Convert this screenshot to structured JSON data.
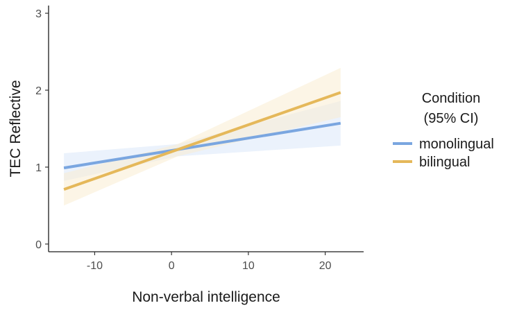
{
  "chart_data": {
    "type": "line",
    "xlabel": "Non-verbal intelligence",
    "ylabel": "TEC Reflective",
    "xlim": [
      -16,
      25
    ],
    "ylim": [
      -0.1,
      3.1
    ],
    "x_ticks": [
      -10,
      0,
      10,
      20
    ],
    "x_tick_labels": [
      "-10",
      "0",
      "10",
      "20"
    ],
    "y_ticks": [
      0,
      1,
      2,
      3
    ],
    "y_tick_labels": [
      "0",
      "1",
      "2",
      "3"
    ],
    "grid": false,
    "legend": {
      "title": [
        "Condition",
        "(95% CI)"
      ],
      "position": "right"
    },
    "series": [
      {
        "name": "monolingual",
        "color": "#7aa6e0",
        "band_color": "#dbe7fa",
        "x": [
          -14,
          0.8,
          22
        ],
        "y": [
          0.99,
          1.22,
          1.57
        ],
        "ci_lower": [
          0.82,
          1.14,
          1.28
        ],
        "ci_upper": [
          1.18,
          1.3,
          1.86
        ]
      },
      {
        "name": "bilingual",
        "color": "#e5b85a",
        "band_color": "#faecd2",
        "x": [
          -14,
          0.8,
          22
        ],
        "y": [
          0.71,
          1.22,
          1.97
        ],
        "ci_lower": [
          0.5,
          1.14,
          1.65
        ],
        "ci_upper": [
          0.92,
          1.3,
          2.29
        ]
      }
    ]
  }
}
